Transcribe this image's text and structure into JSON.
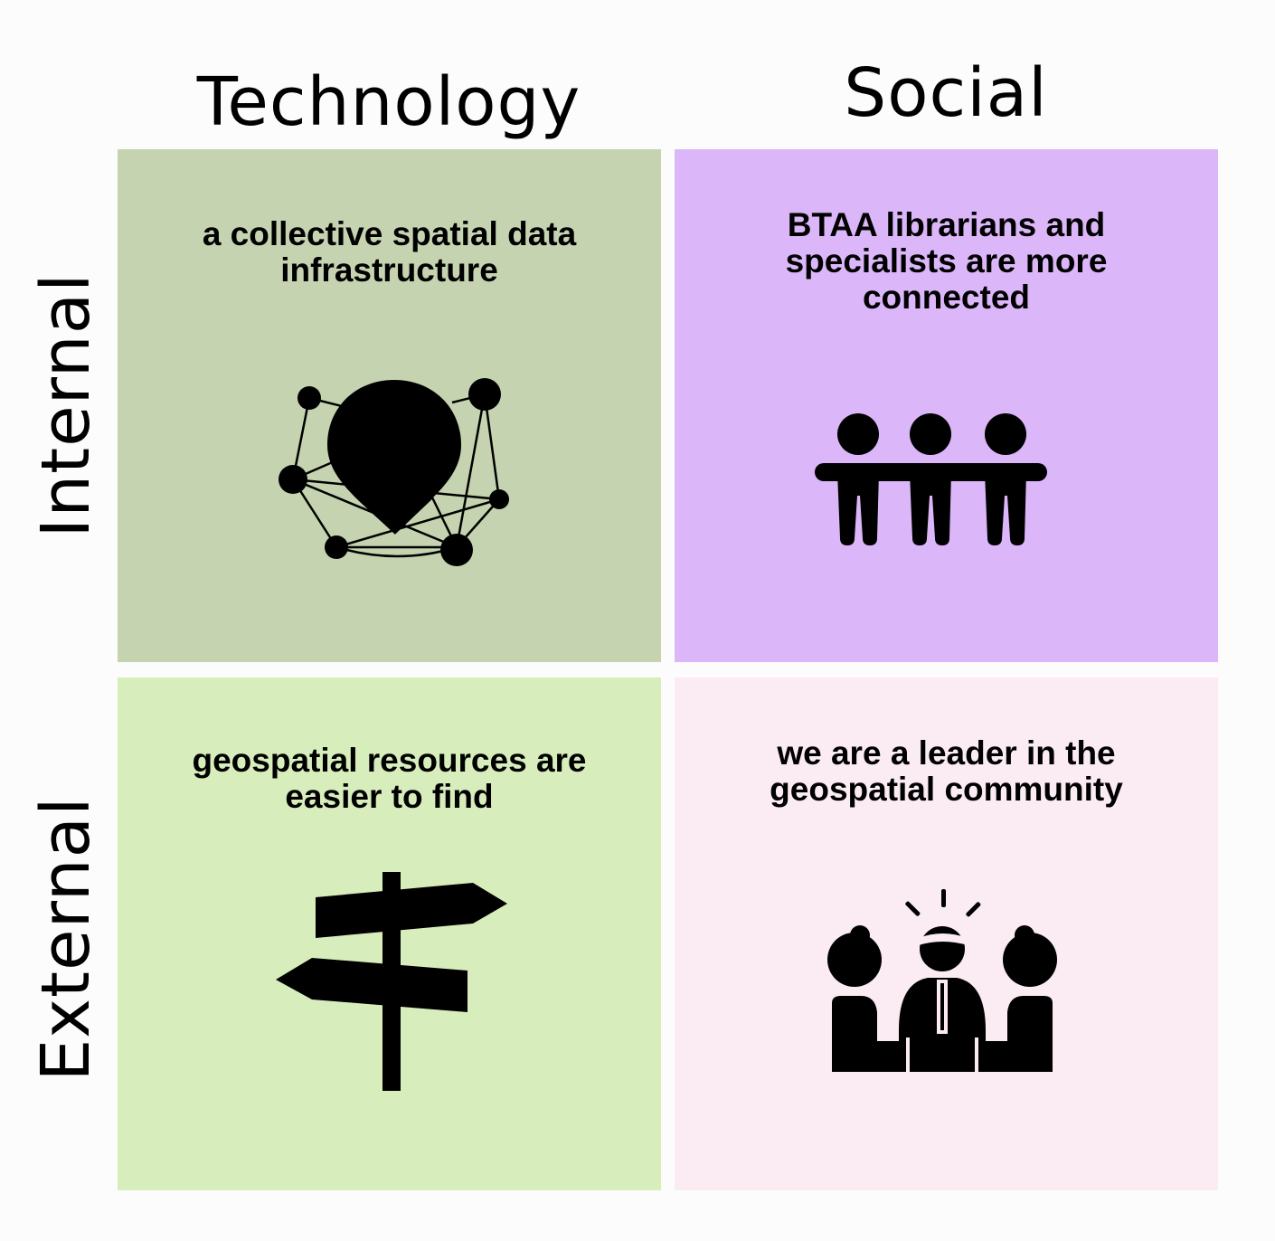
{
  "columns": {
    "technology": "Technology",
    "social": "Social"
  },
  "rows": {
    "internal": "Internal",
    "external": "External"
  },
  "quadrants": {
    "technology_internal": {
      "text": "a collective spatial data infrastructure",
      "color": "#c5d3b0",
      "icon": "network-location-pin-icon"
    },
    "social_internal": {
      "text": "BTAA librarians and specialists are more connected",
      "color": "#dbb6f9",
      "icon": "people-connected-icon"
    },
    "technology_external": {
      "text": "geospatial resources are easier to find",
      "color": "#d8edbc",
      "icon": "signpost-icon"
    },
    "social_external": {
      "text": "we are a leader in the geospatial community",
      "color": "#fbecf4",
      "icon": "leader-meeting-icon"
    }
  }
}
